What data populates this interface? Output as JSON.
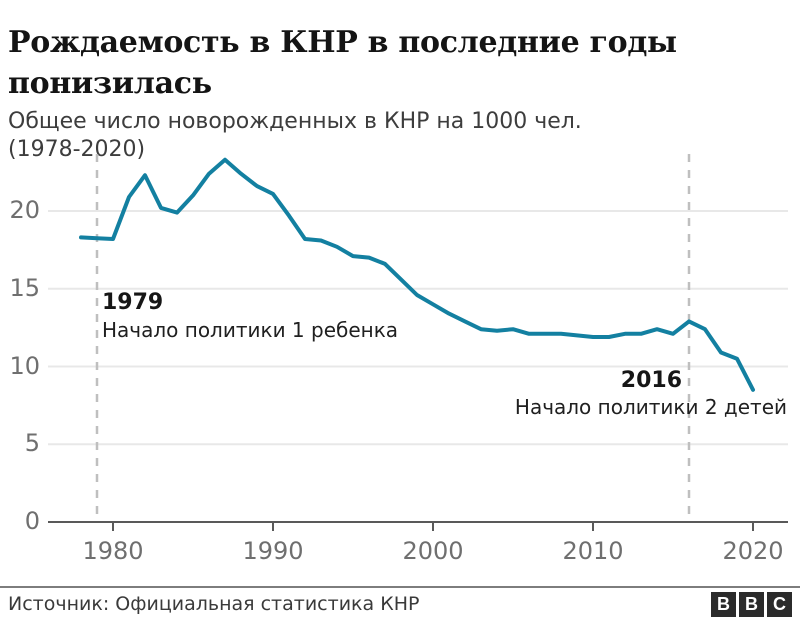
{
  "header": {
    "title": "Рождаемость в КНР в последние годы понизилась",
    "subtitle": "Общее число новорожденных в КНР на 1000 чел. (1978-2020)"
  },
  "chart_data": {
    "type": "line",
    "title": "Рождаемость в КНР в последние годы понизилась",
    "subtitle": "Общее число новорожденных в КНР на 1000 чел. (1978-2020)",
    "x": [
      1978,
      1979,
      1980,
      1981,
      1982,
      1983,
      1984,
      1985,
      1986,
      1987,
      1988,
      1989,
      1990,
      1991,
      1992,
      1993,
      1994,
      1995,
      1996,
      1997,
      1998,
      1999,
      2000,
      2001,
      2002,
      2003,
      2004,
      2005,
      2006,
      2007,
      2008,
      2009,
      2010,
      2011,
      2012,
      2013,
      2014,
      2015,
      2016,
      2017,
      2018,
      2019,
      2020
    ],
    "series": [
      {
        "name": "Число новорожденных на 1000 чел.",
        "color": "#1380A1",
        "values": [
          18.3,
          18.25,
          18.2,
          20.9,
          22.3,
          20.2,
          19.9,
          21.0,
          22.4,
          23.3,
          22.4,
          21.6,
          21.1,
          19.7,
          18.2,
          18.1,
          17.7,
          17.1,
          17.0,
          16.6,
          15.6,
          14.6,
          14.0,
          13.4,
          12.9,
          12.4,
          12.3,
          12.4,
          12.1,
          12.1,
          12.1,
          12.0,
          11.9,
          11.9,
          12.1,
          12.1,
          12.4,
          12.1,
          12.9,
          12.4,
          10.9,
          10.5,
          8.5
        ]
      }
    ],
    "xticks": [
      1980,
      1990,
      2000,
      2010,
      2020
    ],
    "yticks": [
      0,
      5,
      10,
      15,
      20
    ],
    "xlim": [
      1976,
      2022
    ],
    "ylim": [
      0,
      24
    ],
    "grid": true,
    "legend": "none",
    "annotations": [
      {
        "year": 1979,
        "label": "1979",
        "text": "Начало политики 1 ребенка"
      },
      {
        "year": 2016,
        "label": "2016",
        "text": "Начало политики 2 детей"
      }
    ],
    "colors": {
      "line": "#1380A1",
      "grid": "#e8e8e8",
      "axis": "#595959",
      "dashed": "#bfbfbf",
      "tick_label": "#6f6f6f"
    }
  },
  "footer": {
    "source": "Источник: Официальная статистика КНР",
    "logo_letters": [
      "B",
      "B",
      "C"
    ]
  }
}
